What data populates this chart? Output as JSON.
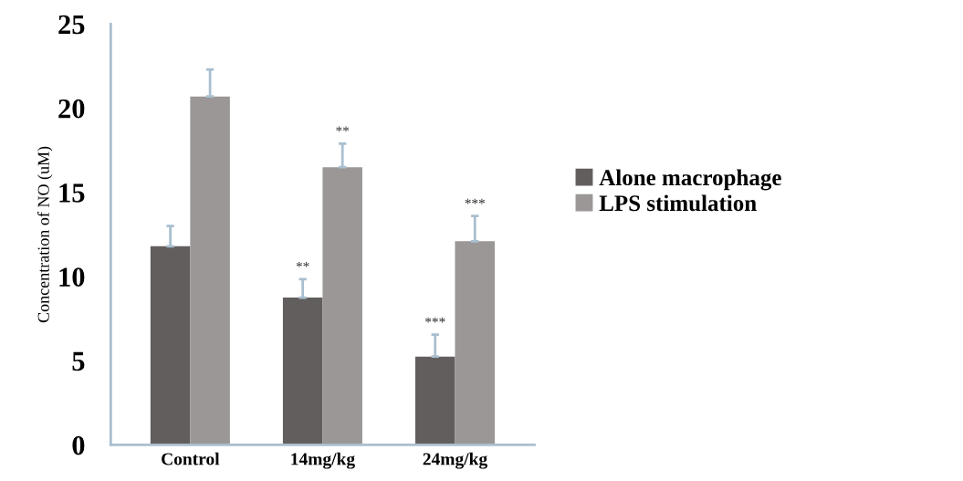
{
  "chart_data": {
    "type": "bar",
    "ylabel": "Concentration of NO (uM)",
    "categories": [
      "Control",
      "14mg/kg",
      "24mg/kg"
    ],
    "series": [
      {
        "name": "Alone macrophage",
        "color": "#625e5d",
        "values": [
          11.8,
          8.75,
          5.25
        ],
        "errors": [
          [
            11.8,
            13.0
          ],
          [
            8.75,
            9.85
          ],
          [
            5.25,
            6.55
          ]
        ],
        "value_labels": [
          null,
          "**",
          "***"
        ]
      },
      {
        "name": "LPS stimulation",
        "color": "#9a9796",
        "values": [
          20.7,
          16.5,
          12.1
        ],
        "errors": [
          [
            20.7,
            22.3
          ],
          [
            16.5,
            17.9
          ],
          [
            12.1,
            13.6
          ]
        ],
        "value_labels": [
          null,
          "**",
          "***"
        ]
      }
    ],
    "ylim": [
      0,
      25
    ],
    "yticks": [
      0,
      5,
      10,
      15,
      20,
      25
    ],
    "grid": false,
    "legend": "right"
  }
}
